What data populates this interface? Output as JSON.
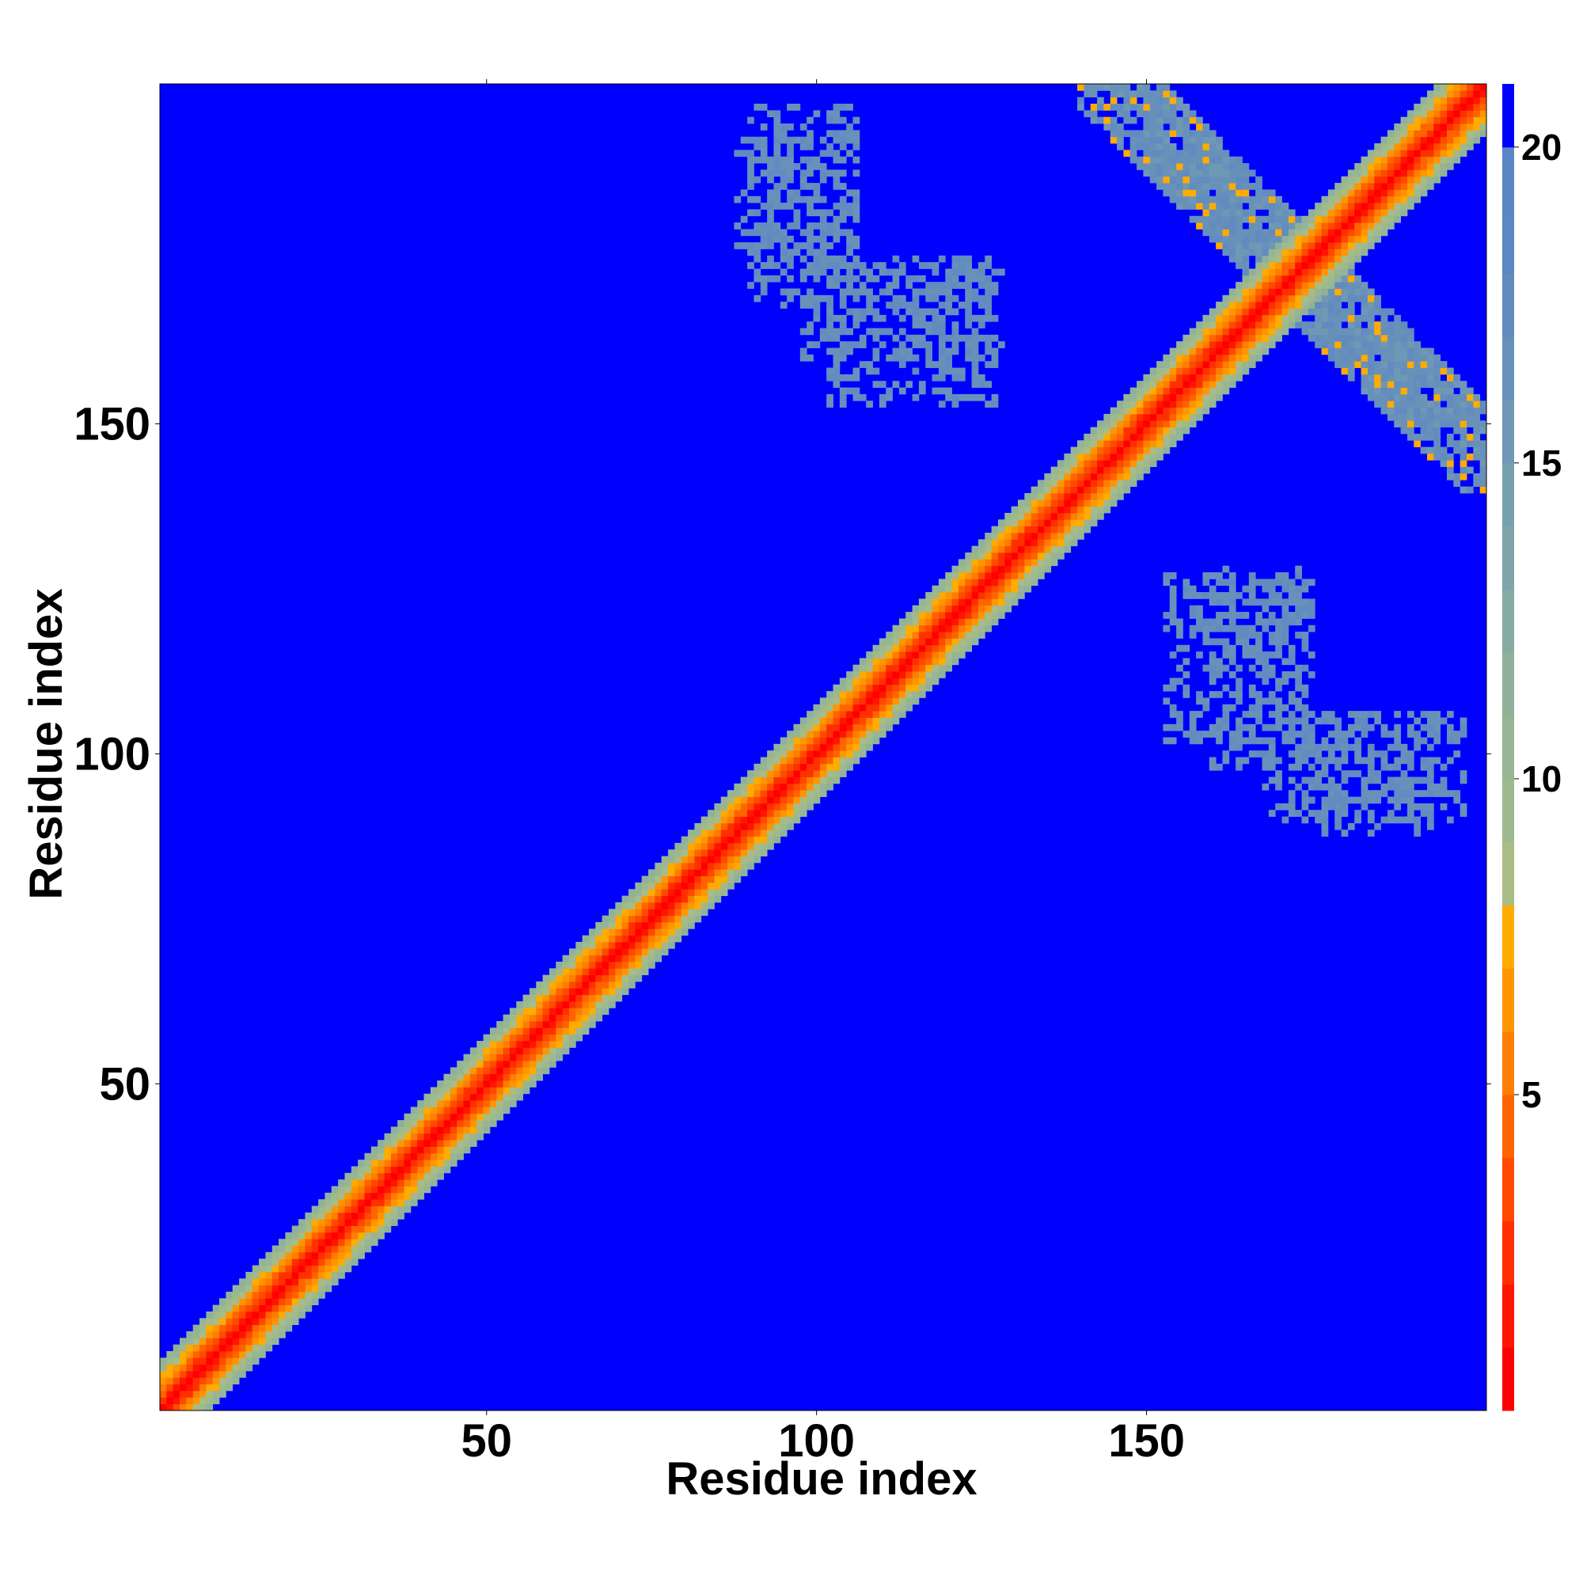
{
  "chart_data": {
    "type": "heatmap",
    "title": "",
    "xlabel": "Residue index",
    "ylabel": "Residue index",
    "n_residues": 201,
    "xlim": [
      1,
      201
    ],
    "ylim": [
      1,
      201
    ],
    "x_ticks": [
      {
        "value": 50,
        "label": "50"
      },
      {
        "value": 100,
        "label": "100"
      },
      {
        "value": 150,
        "label": "150"
      }
    ],
    "y_ticks": [
      {
        "value": 50,
        "label": "50"
      },
      {
        "value": 100,
        "label": "100"
      },
      {
        "value": 150,
        "label": "150"
      }
    ],
    "colorbar": {
      "range": [
        0,
        21
      ],
      "ticks": [
        {
          "value": 5,
          "label": "5"
        },
        {
          "value": 10,
          "label": "10"
        },
        {
          "value": 15,
          "label": "15"
        },
        {
          "value": 20,
          "label": "20"
        }
      ],
      "levels": [
        {
          "from": 0,
          "to": 1,
          "color": "#ff0000"
        },
        {
          "from": 1,
          "to": 2,
          "color": "#ff1500"
        },
        {
          "from": 2,
          "to": 3,
          "color": "#ff3000"
        },
        {
          "from": 3,
          "to": 4,
          "color": "#ff4a00"
        },
        {
          "from": 4,
          "to": 5,
          "color": "#ff6400"
        },
        {
          "from": 5,
          "to": 6,
          "color": "#ff7d00"
        },
        {
          "from": 6,
          "to": 7,
          "color": "#ff9600"
        },
        {
          "from": 7,
          "to": 8,
          "color": "#ffab00"
        },
        {
          "from": 8,
          "to": 9,
          "color": "#a8bc86"
        },
        {
          "from": 9,
          "to": 10,
          "color": "#9fb98e"
        },
        {
          "from": 10,
          "to": 11,
          "color": "#97b594"
        },
        {
          "from": 11,
          "to": 12,
          "color": "#90b199"
        },
        {
          "from": 12,
          "to": 13,
          "color": "#86aba2"
        },
        {
          "from": 13,
          "to": 14,
          "color": "#7fa5a9"
        },
        {
          "from": 14,
          "to": 15,
          "color": "#789fb0"
        },
        {
          "from": 15,
          "to": 16,
          "color": "#6f98b5"
        },
        {
          "from": 16,
          "to": 17,
          "color": "#6891ba"
        },
        {
          "from": 17,
          "to": 18,
          "color": "#628bbf"
        },
        {
          "from": 18,
          "to": 19,
          "color": "#5b87c3"
        },
        {
          "from": 19,
          "to": 20,
          "color": "#5a86c4"
        },
        {
          "from": 20,
          "to": 21,
          "color": "#0000ff"
        }
      ]
    },
    "value_scale": "distance (colorbar units); 21 = beyond cutoff",
    "diagonal_band": {
      "center_value": 0,
      "half_width_residues": 7
    },
    "contact_regions": [
      {
        "x_range": [
          140,
          201
        ],
        "y_range": [
          150,
          201
        ],
        "kind": "anti-diagonal",
        "value": 16
      },
      {
        "x_range": [
          88,
          106
        ],
        "y_range": [
          177,
          194
        ],
        "kind": "scatter",
        "value": 17
      },
      {
        "x_range": [
          98,
          128
        ],
        "y_range": [
          160,
          175
        ],
        "kind": "scatter",
        "value": 17
      },
      {
        "x_range": [
          153,
          174
        ],
        "y_range": [
          102,
          127
        ],
        "kind": "scatter",
        "value": 17
      },
      {
        "x_range": [
          168,
          198
        ],
        "y_range": [
          90,
          106
        ],
        "kind": "scatter",
        "value": 17
      }
    ]
  }
}
